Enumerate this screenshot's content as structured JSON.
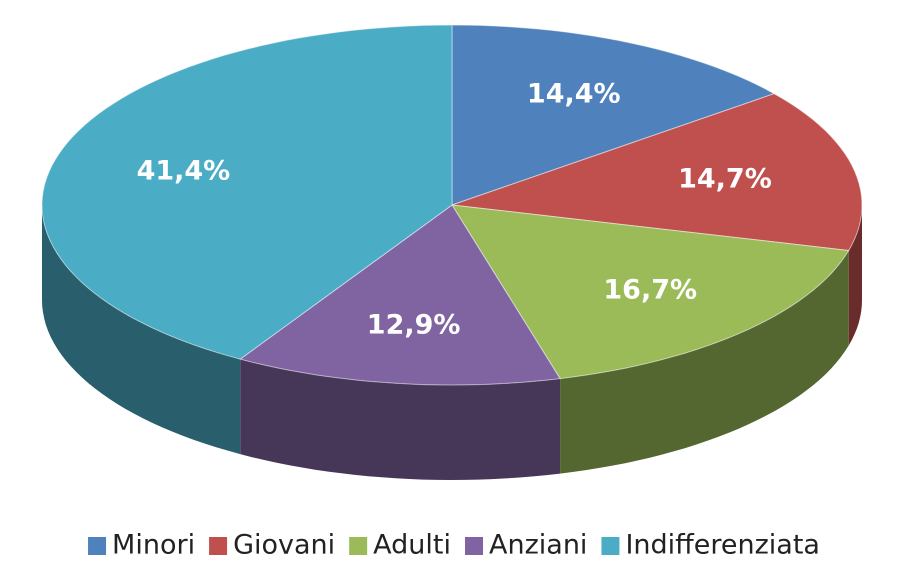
{
  "chart_data": {
    "type": "pie",
    "view": "3d",
    "categories": [
      "Minori",
      "Giovani",
      "Adulti",
      "Anziani",
      "Indifferenziata"
    ],
    "values": [
      14.4,
      14.7,
      16.7,
      12.9,
      41.4
    ],
    "value_labels": [
      "14,4%",
      "14,7%",
      "16,7%",
      "12,9%",
      "41,4%"
    ],
    "colors": [
      "#4f81bd",
      "#c0504d",
      "#9bbb59",
      "#8064a2",
      "#4bacc6"
    ],
    "legend": "bottom"
  }
}
